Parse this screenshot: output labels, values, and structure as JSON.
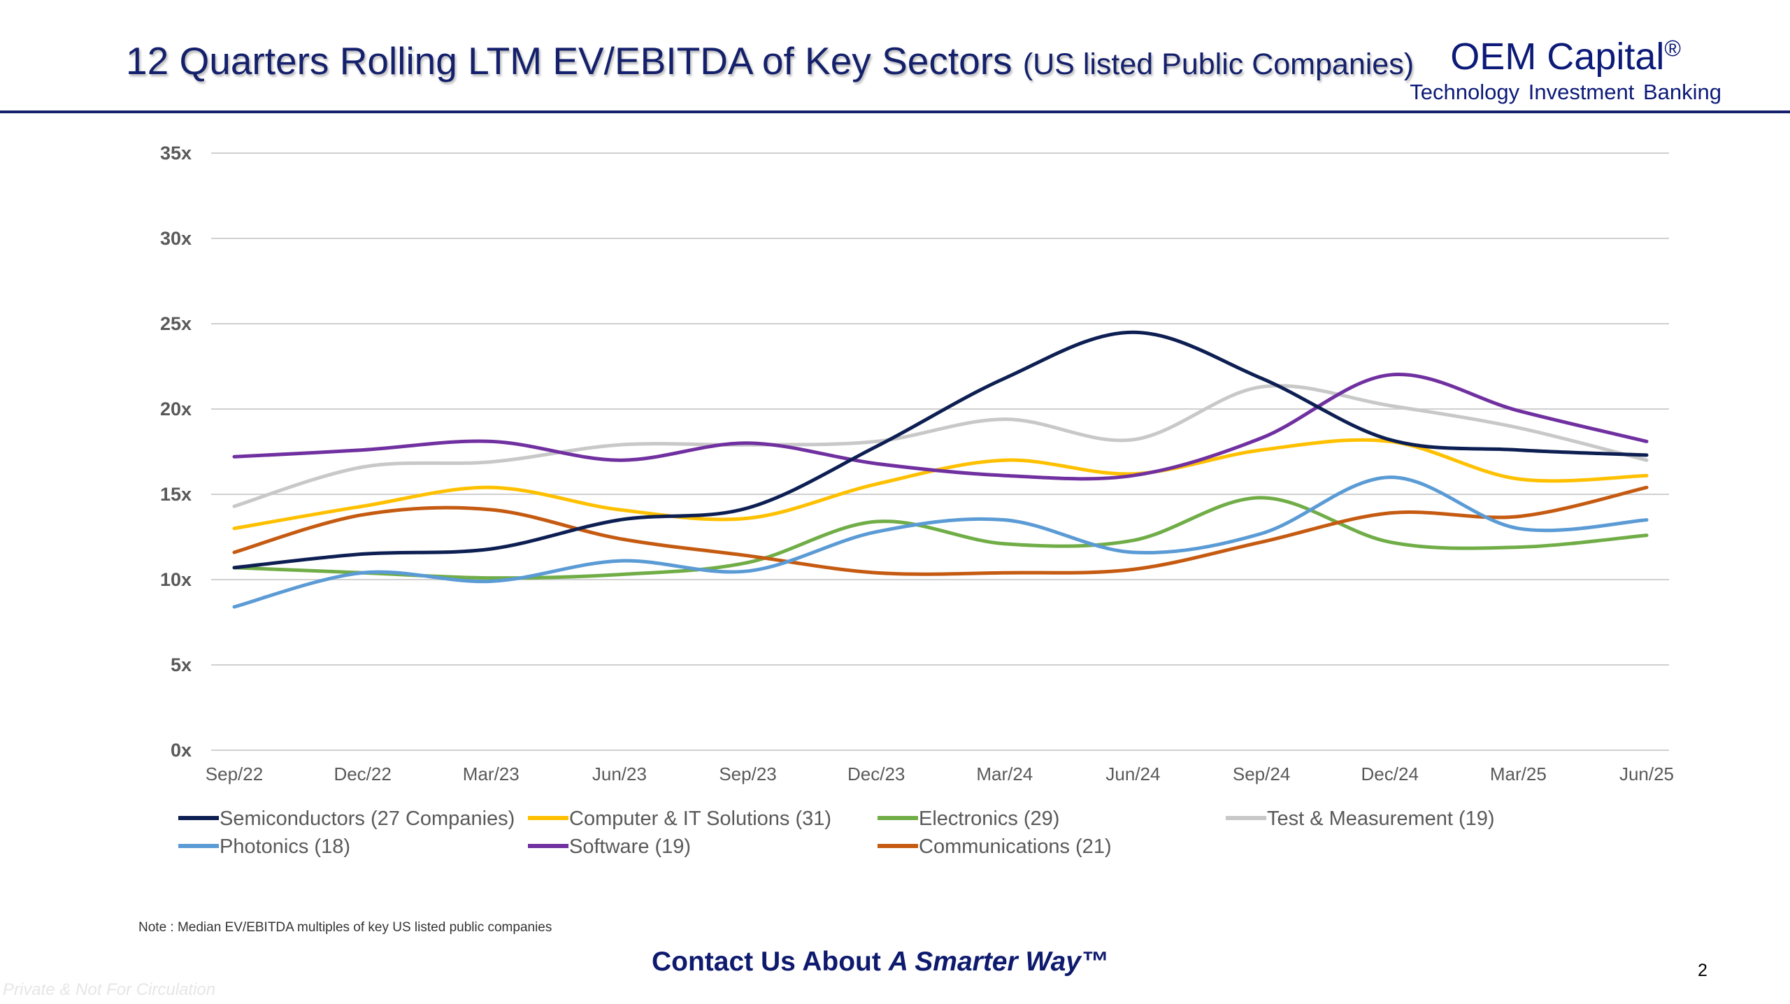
{
  "header": {
    "title_main": "12 Quarters Rolling LTM EV/EBITDA of Key Sectors",
    "title_sub": "(US listed Public Companies)",
    "brand_name": "OEM Capital",
    "brand_mark": "®",
    "brand_tagline": "Technology Investment Banking"
  },
  "chart_data": {
    "type": "line",
    "title": "12 Quarters Rolling LTM EV/EBITDA of Key Sectors (US listed Public Companies)",
    "xlabel": "",
    "ylabel": "",
    "categories": [
      "Sep/22",
      "Dec/22",
      "Mar/23",
      "Jun/23",
      "Sep/23",
      "Dec/23",
      "Mar/24",
      "Jun/24",
      "Sep/24",
      "Dec/24",
      "Mar/25",
      "Jun/25"
    ],
    "y_ticks": [
      "0x",
      "5x",
      "10x",
      "15x",
      "20x",
      "25x",
      "30x",
      "35x"
    ],
    "ylim": [
      0,
      35
    ],
    "grid": true,
    "legend_position": "bottom",
    "series": [
      {
        "name": "Semiconductors (27 Companies)",
        "color": "#0d1f52",
        "values": [
          10.7,
          11.5,
          11.8,
          13.5,
          14.2,
          17.8,
          21.8,
          24.5,
          21.8,
          18.2,
          17.6,
          17.3
        ]
      },
      {
        "name": "Computer & IT Solutions (31)",
        "color": "#ffc000",
        "values": [
          13.0,
          14.3,
          15.4,
          14.1,
          13.6,
          15.6,
          17.0,
          16.2,
          17.6,
          18.1,
          15.9,
          16.1
        ]
      },
      {
        "name": "Electronics (29)",
        "color": "#70ad47",
        "values": [
          10.7,
          10.4,
          10.1,
          10.3,
          11.0,
          13.4,
          12.1,
          12.3,
          14.8,
          12.2,
          11.9,
          12.6
        ]
      },
      {
        "name": "Test & Measurement (19)",
        "color": "#c8c8c8",
        "values": [
          14.3,
          16.6,
          16.9,
          17.9,
          17.9,
          18.1,
          19.4,
          18.2,
          21.3,
          20.2,
          18.9,
          17.0
        ]
      },
      {
        "name": "Photonics (18)",
        "color": "#5b9bd5",
        "values": [
          8.4,
          10.4,
          9.9,
          11.1,
          10.5,
          12.8,
          13.5,
          11.6,
          12.7,
          16.0,
          13.0,
          13.5
        ]
      },
      {
        "name": "Software (19)",
        "color": "#7030a0",
        "values": [
          17.2,
          17.6,
          18.1,
          17.0,
          18.0,
          16.8,
          16.1,
          16.1,
          18.3,
          22.0,
          19.9,
          18.1
        ]
      },
      {
        "name": "Communications (21)",
        "color": "#c55a11",
        "values": [
          11.6,
          13.8,
          14.1,
          12.4,
          11.4,
          10.4,
          10.4,
          10.6,
          12.2,
          13.9,
          13.7,
          15.4
        ]
      }
    ]
  },
  "footer": {
    "note": "Note : Median EV/EBITDA multiples of key US listed public companies",
    "contact_prefix": "Contact Us About ",
    "contact_emph": "A Smarter Way™",
    "page_number": "2",
    "watermark": "Private & Not For Circulation"
  }
}
